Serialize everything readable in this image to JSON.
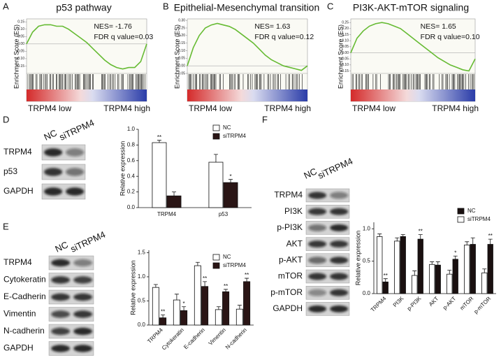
{
  "panel_labels": [
    "A",
    "B",
    "C",
    "D",
    "E",
    "F"
  ],
  "chart_data": [
    {
      "type": "line",
      "title": "p53 pathway",
      "ylabel": "Enrichment Score (ES)",
      "color": "#66bb33",
      "annotations": [
        "NES= -1.76",
        "FDR q value=0.03"
      ],
      "x_end_labels": [
        "TRPM4 low",
        "TRPM4 high"
      ],
      "x": [
        0,
        5,
        10,
        15,
        20,
        25,
        30,
        35,
        40,
        45,
        50,
        55,
        60,
        65,
        70,
        75,
        80,
        85,
        90,
        95,
        100
      ],
      "xlim": [
        0,
        100
      ],
      "values": [
        0,
        0.08,
        0.12,
        0.13,
        0.13,
        0.12,
        0.12,
        0.1,
        0.07,
        0.04,
        0.01,
        -0.03,
        -0.07,
        -0.11,
        -0.14,
        -0.16,
        -0.17,
        -0.16,
        -0.16,
        -0.12,
        0
      ],
      "ylim": [
        -0.2,
        0.17
      ],
      "yticks": [
        0.15,
        {
          "value": 0.1,
          "label": "0.10"
        },
        0.05,
        {
          "value": 0,
          "label": "0.00"
        },
        -0.05,
        {
          "value": -0.1,
          "label": "-0.10"
        },
        -0.15
      ]
    },
    {
      "type": "line",
      "title": "Epithelial-Mesenchymal transition",
      "ylabel": "Enrichment Score (ES)",
      "color": "#66bb33",
      "annotations": [
        "NES= 1.63",
        "FDR q value=0.12"
      ],
      "x_end_labels": [
        "TRPM4 low",
        "TRPM4 high"
      ],
      "x": [
        0,
        5,
        10,
        15,
        20,
        25,
        30,
        35,
        40,
        45,
        50,
        55,
        60,
        65,
        70,
        75,
        80,
        85,
        90,
        95,
        100
      ],
      "xlim": [
        0,
        100
      ],
      "values": [
        0,
        0.12,
        0.2,
        0.25,
        0.27,
        0.28,
        0.27,
        0.26,
        0.24,
        0.21,
        0.18,
        0.15,
        0.11,
        0.07,
        0.04,
        0.02,
        0,
        -0.01,
        -0.02,
        -0.03,
        0
      ],
      "ylim": [
        -0.05,
        0.31
      ],
      "yticks": [
        {
          "value": 0.3,
          "label": "0.30"
        },
        0.25,
        {
          "value": 0.2,
          "label": "0.20"
        },
        0.15,
        {
          "value": 0.1,
          "label": "0.10"
        },
        0.05,
        {
          "value": 0,
          "label": "0.00"
        },
        -0.05
      ]
    },
    {
      "type": "line",
      "title": "PI3K-AKT-mTOR signaling",
      "ylabel": "Enrichment Score (ES)",
      "color": "#66bb33",
      "annotations": [
        "NES= 1.65",
        "FDR q value=0.10"
      ],
      "x_end_labels": [
        "TRPM4 low",
        "TRPM4 high"
      ],
      "x": [
        0,
        5,
        10,
        15,
        20,
        25,
        30,
        35,
        40,
        45,
        50,
        55,
        60,
        65,
        70,
        75,
        80,
        85,
        90,
        95,
        100
      ],
      "xlim": [
        0,
        100
      ],
      "values": [
        0,
        0.12,
        0.18,
        0.22,
        0.24,
        0.25,
        0.24,
        0.22,
        0.2,
        0.16,
        0.12,
        0.08,
        0.04,
        0,
        -0.04,
        -0.07,
        -0.1,
        -0.12,
        -0.14,
        -0.15,
        -0.05
      ],
      "ylim": [
        -0.17,
        0.28
      ],
      "yticks": [
        0.25,
        {
          "value": 0.2,
          "label": "0.20"
        },
        0.15,
        {
          "value": 0.1,
          "label": "0.10"
        },
        0.05,
        {
          "value": 0,
          "label": "0.00"
        },
        -0.05,
        {
          "value": -0.1,
          "label": "-0.10"
        },
        -0.15
      ]
    },
    {
      "type": "bar",
      "ylabel": "Relative expression",
      "categories": [
        "TRPM4",
        "p53"
      ],
      "series": [
        {
          "name": "NC",
          "color": "#ffffff",
          "values": [
            0.83,
            0.58
          ],
          "errors": [
            0.03,
            0.1
          ],
          "significance": [
            "**",
            null
          ]
        },
        {
          "name": "siTRPM4",
          "color": "#2a1515",
          "values": [
            0.15,
            0.32
          ],
          "errors": [
            0.05,
            0.04
          ],
          "significance": [
            null,
            "*"
          ]
        }
      ],
      "ylim": [
        0,
        1.0
      ],
      "yticks": [
        {
          "value": 0,
          "label": "0.0"
        },
        0.2,
        0.4,
        0.6,
        0.8,
        {
          "value": 1,
          "label": "1.0"
        }
      ]
    },
    {
      "type": "bar",
      "ylabel": "Relative expression",
      "categories": [
        "TRPM4",
        "Cytokeratin",
        "E-cadherin",
        "Vimentin",
        "N-cadherin"
      ],
      "series": [
        {
          "name": "NC",
          "color": "#ffffff",
          "values": [
            0.78,
            0.52,
            1.23,
            0.32,
            0.33
          ],
          "errors": [
            0.06,
            0.12,
            0.07,
            0.06,
            0.08
          ],
          "significance": [
            null,
            null,
            null,
            null,
            null
          ]
        },
        {
          "name": "siTRPM4",
          "color": "#2a1515",
          "values": [
            0.15,
            0.3,
            0.8,
            0.69,
            0.9
          ],
          "errors": [
            0.06,
            0.08,
            0.1,
            0.05,
            0.07
          ],
          "significance": [
            "**",
            "*",
            "**",
            "**",
            "**"
          ]
        }
      ],
      "ylim": [
        0,
        1.55
      ],
      "yticks": [
        {
          "value": 0,
          "label": "0.0"
        },
        0.5,
        {
          "value": 1,
          "label": "1.0"
        },
        1.5
      ]
    },
    {
      "type": "bar",
      "ylabel": "Relative expression",
      "categories": [
        "TRPM4",
        "PI3K",
        "p-PI3K",
        "AKT",
        "p-AKT",
        "mTOR",
        "p-mTOR"
      ],
      "reverse_dodge": true,
      "series": [
        {
          "name": "NC",
          "color": "#1a1010",
          "values": [
            0.18,
            0.88,
            0.84,
            0.44,
            0.53,
            0.76,
            0.76
          ],
          "errors": [
            0.05,
            0.03,
            0.07,
            0.05,
            0.05,
            0.1,
            0.08
          ],
          "significance": [
            "**",
            null,
            "**",
            null,
            "*",
            null,
            "**"
          ]
        },
        {
          "name": "siTRPM4",
          "color": "#ffffff",
          "values": [
            0.88,
            0.81,
            0.28,
            0.45,
            0.3,
            0.75,
            0.32
          ],
          "errors": [
            0.04,
            0.05,
            0.07,
            0.04,
            0.06,
            0.05,
            0.06
          ],
          "significance": [
            null,
            null,
            null,
            null,
            null,
            null,
            null
          ]
        }
      ],
      "ylim": [
        0,
        1.1
      ],
      "yticks": [
        {
          "value": 0,
          "label": "0.0"
        },
        0.5,
        {
          "value": 1,
          "label": "1.0"
        }
      ]
    }
  ],
  "blots": [
    {
      "lanes": [
        "NC",
        "siTRPM4"
      ],
      "rows": [
        "TRPM4",
        "p53",
        "GAPDH"
      ]
    },
    {
      "lanes": [
        "NC",
        "siTRPM4"
      ],
      "rows": [
        "TRPM4",
        "Cytokeratin",
        "E-Cadherin",
        "Vimentin",
        "N-cadherin",
        "GAPDH"
      ]
    },
    {
      "lanes": [
        "NC",
        "siTRPM4"
      ],
      "rows": [
        "TRPM4",
        "PI3K",
        "p-PI3K",
        "AKT",
        "p-AKT",
        "mTOR",
        "p-mTOR",
        "GAPDH"
      ]
    }
  ]
}
